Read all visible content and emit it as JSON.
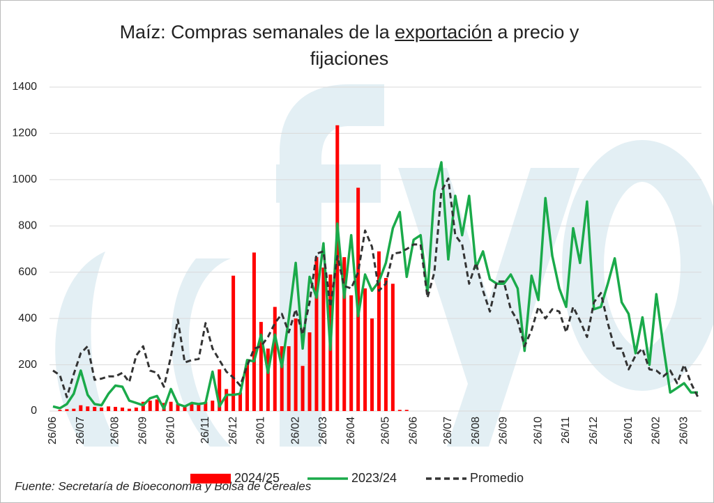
{
  "chart_data": {
    "type": "combo",
    "title": [
      "Maíz: Compras semanales de la",
      "exportación",
      "a precio y",
      "fijaciones"
    ],
    "source": "Fuente: Secretaría de Bioeconomía y Bolsa de Cereales",
    "categories": [
      "26/06",
      null,
      null,
      null,
      "26/07",
      null,
      null,
      null,
      null,
      "26/08",
      null,
      null,
      null,
      "26/09",
      null,
      null,
      null,
      "26/10",
      null,
      null,
      null,
      null,
      "26/11",
      null,
      null,
      null,
      "26/12",
      null,
      null,
      null,
      "26/01",
      null,
      null,
      null,
      null,
      "26/02",
      null,
      null,
      null,
      "26/03",
      null,
      null,
      null,
      "26/04",
      null,
      null,
      null,
      null,
      "26/05",
      null,
      null,
      null,
      "26/06",
      null,
      null,
      null,
      null,
      "26/07",
      null,
      null,
      null,
      "26/08",
      null,
      null,
      null,
      "26/09",
      null,
      null,
      null,
      null,
      "26/10",
      null,
      null,
      null,
      "26/11",
      null,
      null,
      null,
      "26/12",
      null,
      null,
      null,
      null,
      "26/01",
      null,
      null,
      null,
      "26/02",
      null,
      null,
      null,
      "26/03",
      null,
      null
    ],
    "series": [
      {
        "name": "2024/25",
        "type": "bar",
        "color": "#ff0000",
        "values": [
          0,
          5,
          8,
          10,
          25,
          20,
          18,
          15,
          20,
          18,
          15,
          10,
          15,
          40,
          45,
          50,
          35,
          40,
          30,
          25,
          30,
          30,
          40,
          45,
          180,
          95,
          585,
          80,
          210,
          685,
          385,
          270,
          450,
          280,
          280,
          400,
          195,
          340,
          665,
          620,
          590,
          1235,
          665,
          500,
          965,
          530,
          400,
          690,
          575,
          550,
          5,
          5,
          null,
          null,
          null,
          null,
          null,
          null,
          null,
          null,
          null,
          null,
          null,
          null,
          null,
          null,
          null,
          null,
          null,
          null,
          null,
          null,
          null,
          null,
          null,
          null,
          null,
          null,
          null,
          null,
          null,
          null,
          null,
          null,
          null,
          null,
          null,
          null,
          null,
          null,
          null,
          null,
          null,
          null
        ]
      },
      {
        "name": "2023/24",
        "type": "line",
        "color": "#1aaa4a",
        "values": [
          20,
          12,
          30,
          75,
          175,
          70,
          30,
          25,
          75,
          110,
          105,
          45,
          35,
          25,
          55,
          65,
          10,
          95,
          30,
          20,
          35,
          30,
          35,
          170,
          20,
          70,
          70,
          75,
          220,
          215,
          330,
          165,
          330,
          190,
          400,
          640,
          270,
          580,
          490,
          725,
          265,
          810,
          490,
          760,
          410,
          590,
          520,
          560,
          640,
          790,
          860,
          580,
          740,
          760,
          510,
          950,
          1075,
          655,
          930,
          760,
          930,
          620,
          690,
          570,
          550,
          550,
          590,
          530,
          260,
          585,
          480,
          920,
          670,
          530,
          450,
          790,
          640,
          905,
          440,
          450,
          550,
          660,
          470,
          420,
          250,
          405,
          200,
          505,
          280,
          80,
          100,
          120,
          80,
          80
        ]
      },
      {
        "name": "Promedio",
        "type": "dashed",
        "color": "#333333",
        "values": [
          175,
          155,
          60,
          160,
          250,
          280,
          135,
          140,
          150,
          150,
          165,
          125,
          240,
          280,
          175,
          165,
          105,
          235,
          395,
          210,
          220,
          225,
          380,
          270,
          220,
          170,
          145,
          110,
          195,
          270,
          280,
          320,
          380,
          420,
          340,
          440,
          330,
          470,
          680,
          690,
          450,
          670,
          540,
          530,
          600,
          780,
          710,
          520,
          550,
          680,
          685,
          700,
          720,
          720,
          490,
          600,
          950,
          1005,
          760,
          720,
          550,
          640,
          520,
          430,
          560,
          560,
          440,
          390,
          280,
          350,
          450,
          400,
          440,
          430,
          340,
          450,
          390,
          320,
          470,
          510,
          380,
          270,
          270,
          180,
          240,
          270,
          180,
          175,
          150,
          175,
          120,
          200,
          120,
          60
        ]
      }
    ],
    "ylim": [
      0,
      1400
    ],
    "yticks": [
      0,
      200,
      400,
      600,
      800,
      1000,
      1200,
      1400
    ],
    "grid": true
  }
}
